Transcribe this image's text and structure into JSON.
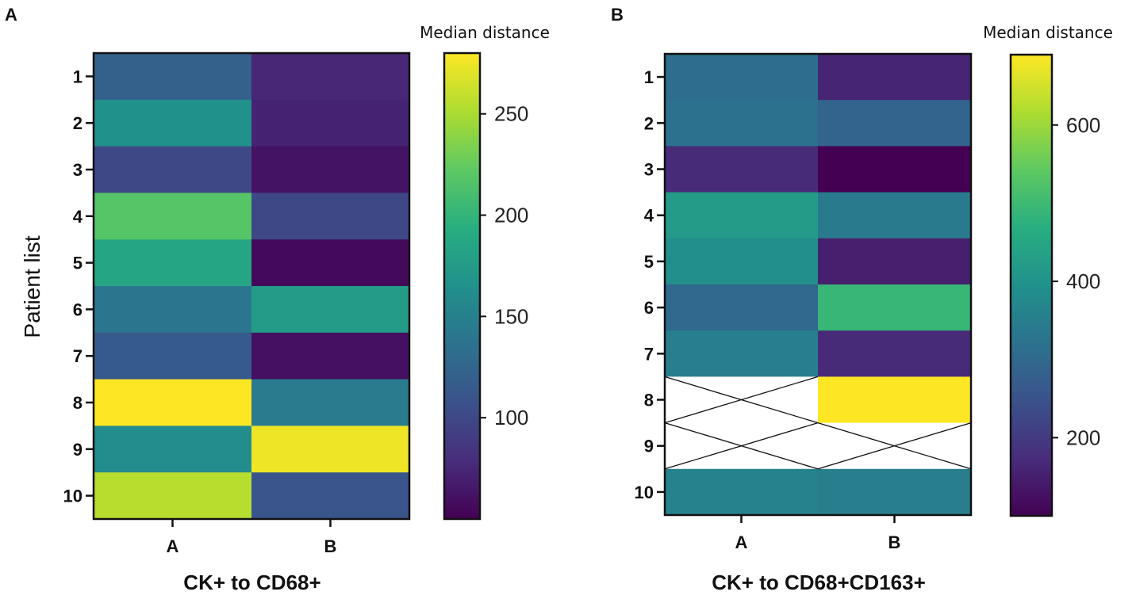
{
  "chart_data": [
    {
      "type": "heatmap",
      "panel_label": "A",
      "title": "",
      "xlabel": "CK+ to CD68+",
      "ylabel": "Patient list",
      "x_categories": [
        "A",
        "B"
      ],
      "y_categories": [
        "1",
        "2",
        "3",
        "4",
        "5",
        "6",
        "7",
        "8",
        "9",
        "10"
      ],
      "values": [
        [
          120,
          75
        ],
        [
          165,
          72
        ],
        [
          100,
          62
        ],
        [
          218,
          100
        ],
        [
          185,
          55
        ],
        [
          140,
          175
        ],
        [
          115,
          60
        ],
        [
          280,
          145
        ],
        [
          160,
          275
        ],
        [
          255,
          110
        ]
      ],
      "colorbar": {
        "title": "Median distance",
        "range": [
          50,
          280
        ],
        "ticks": [
          100,
          150,
          200,
          250
        ],
        "colormap": "viridis"
      }
    },
    {
      "type": "heatmap",
      "panel_label": "B",
      "title": "",
      "xlabel": "CK+ to CD68+CD163+",
      "ylabel": "",
      "x_categories": [
        "A",
        "B"
      ],
      "y_categories": [
        "1",
        "2",
        "3",
        "4",
        "5",
        "6",
        "7",
        "8",
        "9",
        "10"
      ],
      "values": [
        [
          310,
          160
        ],
        [
          320,
          290
        ],
        [
          170,
          100
        ],
        [
          420,
          340
        ],
        [
          390,
          150
        ],
        [
          300,
          490
        ],
        [
          350,
          170
        ],
        [
          null,
          690
        ],
        [
          null,
          null
        ],
        [
          360,
          350
        ]
      ],
      "missing": "crossed-out",
      "colorbar": {
        "title": "Median distance",
        "range": [
          100,
          690
        ],
        "ticks": [
          200,
          400,
          600
        ],
        "colormap": "viridis"
      }
    }
  ]
}
